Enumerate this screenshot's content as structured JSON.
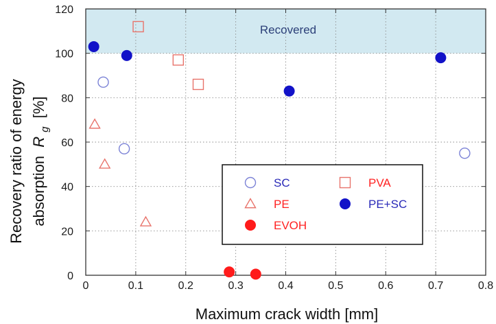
{
  "chart_data": {
    "type": "scatter",
    "title": "",
    "xlabel": "Maximum crack width [mm]",
    "ylabel": {
      "line1": "Recovery ratio of energy",
      "line2_prefix": "absorption",
      "symbol": "R",
      "subscript": "g",
      "unit": "[%]"
    },
    "xlim": [
      0,
      0.8
    ],
    "ylim": [
      0,
      120
    ],
    "xticks": [
      "0",
      "0.1",
      "0.2",
      "0.3",
      "0.4",
      "0.5",
      "0.6",
      "0.7",
      "0.8"
    ],
    "yticks": [
      "0",
      "20",
      "40",
      "60",
      "80",
      "100",
      "120"
    ],
    "grid": true,
    "shaded_region": {
      "label": "Recovered",
      "y_from": 100,
      "y_to": 120,
      "color": "#d2e9f1"
    },
    "legend_position": "lower-right",
    "series": [
      {
        "name": "SC",
        "marker": "circle-open",
        "color": "#7b82d6",
        "points": [
          [
            0.035,
            87
          ],
          [
            0.077,
            57
          ],
          [
            0.758,
            55
          ]
        ]
      },
      {
        "name": "PVA",
        "marker": "square-open",
        "color": "#e8736b",
        "points": [
          [
            0.105,
            112
          ],
          [
            0.185,
            97
          ],
          [
            0.225,
            86
          ]
        ]
      },
      {
        "name": "PE",
        "marker": "triangle-open",
        "color": "#e8736b",
        "points": [
          [
            0.018,
            68
          ],
          [
            0.038,
            50
          ],
          [
            0.12,
            24
          ]
        ]
      },
      {
        "name": "PE+SC",
        "marker": "circle-filled",
        "color": "#1212c8",
        "points": [
          [
            0.016,
            103
          ],
          [
            0.082,
            99
          ],
          [
            0.407,
            83
          ],
          [
            0.71,
            98
          ]
        ]
      },
      {
        "name": "EVOH",
        "marker": "circle-filled",
        "color": "#ff1b1b",
        "points": [
          [
            0.287,
            1.5
          ],
          [
            0.34,
            0.5
          ]
        ]
      }
    ],
    "legend_order": [
      "SC",
      "PVA",
      "PE",
      "PE+SC",
      "EVOH"
    ],
    "legend_text_colors": {
      "SC": "#2a2ab8",
      "PVA": "#ff2222",
      "PE": "#ff2222",
      "PE+SC": "#2a2ab8",
      "EVOH": "#ff2222"
    }
  }
}
